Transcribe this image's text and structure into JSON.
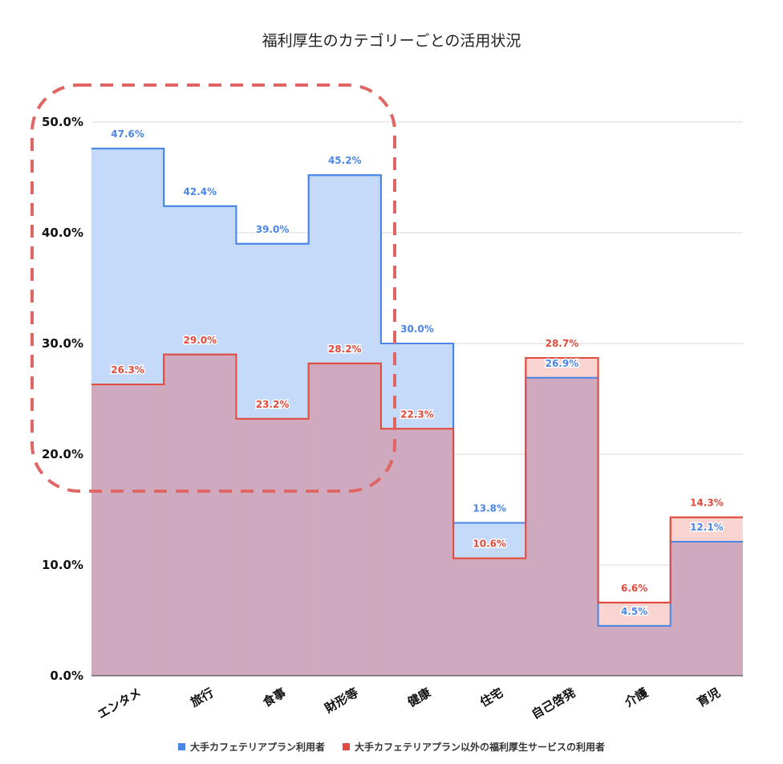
{
  "chart_data": {
    "type": "area",
    "step": true,
    "title": "福利厚生のカテゴリーごとの活用状況",
    "categories": [
      "エンタメ",
      "旅行",
      "食事",
      "財形等",
      "健康",
      "住宅",
      "自己啓発",
      "介護",
      "育児"
    ],
    "series": [
      {
        "name": "大手カフェテリアプラン利用者",
        "color": "#4a86e8",
        "fill": "#c5d9f8",
        "values": [
          47.6,
          42.4,
          39.0,
          45.2,
          30.0,
          13.8,
          26.9,
          4.5,
          12.1
        ],
        "labels": [
          "47.6%",
          "42.4%",
          "39.0%",
          "45.2%",
          "30.0%",
          "13.8%",
          "26.9%",
          "4.5%",
          "12.1%"
        ]
      },
      {
        "name": "大手カフェテリアプラン以外の福利厚生サービスの利用者",
        "color": "#e24a3b",
        "fill": "#f7c5c0",
        "values": [
          26.3,
          29.0,
          23.2,
          28.2,
          22.3,
          10.6,
          28.7,
          6.6,
          14.3
        ],
        "labels": [
          "26.3%",
          "29.0%",
          "23.2%",
          "28.2%",
          "22.3%",
          "10.6%",
          "28.7%",
          "6.6%",
          "14.3%"
        ]
      }
    ],
    "ylim": [
      0,
      50
    ],
    "yticks": [
      0,
      10,
      20,
      30,
      40,
      50
    ],
    "ytick_labels": [
      "0.0%",
      "10.0%",
      "20.0%",
      "30.0%",
      "40.0%",
      "50.0%"
    ],
    "grid": true,
    "legend": "bottom",
    "annotation": "dashed rounded box highlighting エンタメ–財形等"
  }
}
